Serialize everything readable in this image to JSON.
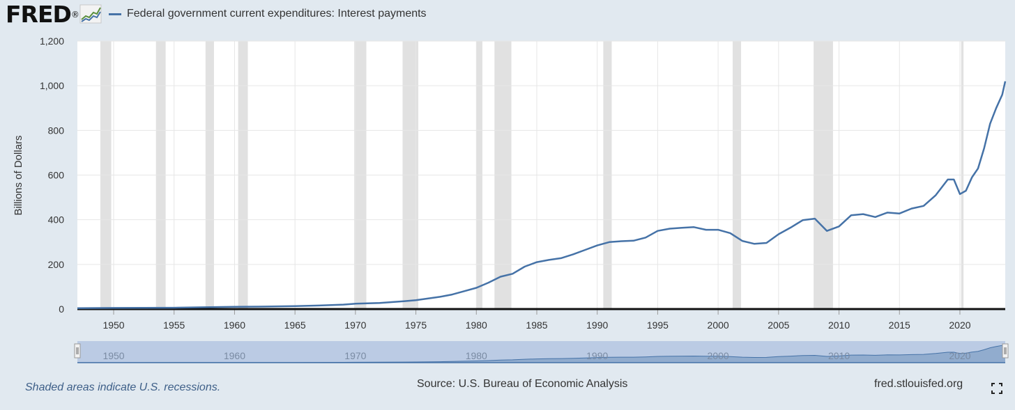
{
  "header": {
    "logo_text": "FRED",
    "logo_mark": "®",
    "logo_icon": "fred-trend-chart-icon"
  },
  "colors": {
    "background": "#e1e9f0",
    "plot_background": "#ffffff",
    "series_line": "#4572a7",
    "recession_shade": "#e1e1e1",
    "navigator_fill": "#b7c8e2",
    "navigator_series": "#4572a7"
  },
  "chart_data": {
    "type": "line",
    "title": "",
    "ylabel": "Billions of Dollars",
    "xlabel": "",
    "xlim": [
      1947.0,
      2023.75
    ],
    "ylim": [
      0,
      1200
    ],
    "grid": true,
    "legend_placement": "top-left",
    "y_ticks": [
      0,
      200,
      400,
      600,
      800,
      1000,
      1200
    ],
    "y_tick_labels": [
      "0",
      "200",
      "400",
      "600",
      "800",
      "1,000",
      "1,200"
    ],
    "x_ticks": [
      1950,
      1955,
      1960,
      1965,
      1970,
      1975,
      1980,
      1985,
      1990,
      1995,
      2000,
      2005,
      2010,
      2015,
      2020
    ],
    "navigator_ticks": [
      1950,
      1960,
      1970,
      1980,
      1990,
      2000,
      2010,
      2020
    ],
    "series": [
      {
        "name": "Federal government current expenditures: Interest payments",
        "x": [
          1947.0,
          1950.0,
          1955.0,
          1957.5,
          1960.0,
          1962.0,
          1965.0,
          1967.0,
          1969.0,
          1970.0,
          1972.0,
          1974.0,
          1975.0,
          1977.0,
          1978.0,
          1979.0,
          1980.0,
          1981.0,
          1982.0,
          1983.0,
          1984.0,
          1985.0,
          1986.0,
          1987.0,
          1988.0,
          1989.0,
          1990.0,
          1991.0,
          1992.0,
          1993.0,
          1994.0,
          1995.0,
          1996.0,
          1997.0,
          1998.0,
          1999.0,
          2000.0,
          2001.0,
          2002.0,
          2003.0,
          2004.0,
          2005.0,
          2006.0,
          2007.0,
          2008.0,
          2009.0,
          2010.0,
          2011.0,
          2012.0,
          2013.0,
          2014.0,
          2015.0,
          2016.0,
          2017.0,
          2018.0,
          2019.0,
          2019.5,
          2020.0,
          2020.5,
          2021.0,
          2021.5,
          2022.0,
          2022.5,
          2023.0,
          2023.5,
          2023.75
        ],
        "y": [
          4,
          5,
          6,
          8,
          10,
          11,
          13,
          16,
          20,
          24,
          27,
          35,
          40,
          55,
          65,
          80,
          95,
          118,
          145,
          158,
          190,
          210,
          220,
          228,
          245,
          265,
          285,
          300,
          304,
          306,
          320,
          350,
          360,
          364,
          367,
          355,
          355,
          340,
          305,
          292,
          296,
          335,
          365,
          398,
          405,
          350,
          370,
          420,
          425,
          412,
          432,
          428,
          450,
          462,
          510,
          580,
          580,
          515,
          530,
          590,
          630,
          720,
          830,
          900,
          960,
          1020
        ]
      }
    ],
    "recessions": [
      [
        1948.9,
        1949.8
      ],
      [
        1953.5,
        1954.3
      ],
      [
        1957.6,
        1958.3
      ],
      [
        1960.3,
        1961.1
      ],
      [
        1969.9,
        1970.9
      ],
      [
        1973.9,
        1975.2
      ],
      [
        1980.0,
        1980.5
      ],
      [
        1981.5,
        1982.9
      ],
      [
        1990.5,
        1991.2
      ],
      [
        2001.2,
        2001.9
      ],
      [
        2007.9,
        2009.5
      ],
      [
        2020.1,
        2020.3
      ]
    ]
  },
  "footer": {
    "note": "Shaded areas indicate U.S. recessions.",
    "source": "Source: U.S. Bureau of Economic Analysis",
    "site": "fred.stlouisfed.org",
    "fullscreen_icon": "fullscreen-icon"
  }
}
